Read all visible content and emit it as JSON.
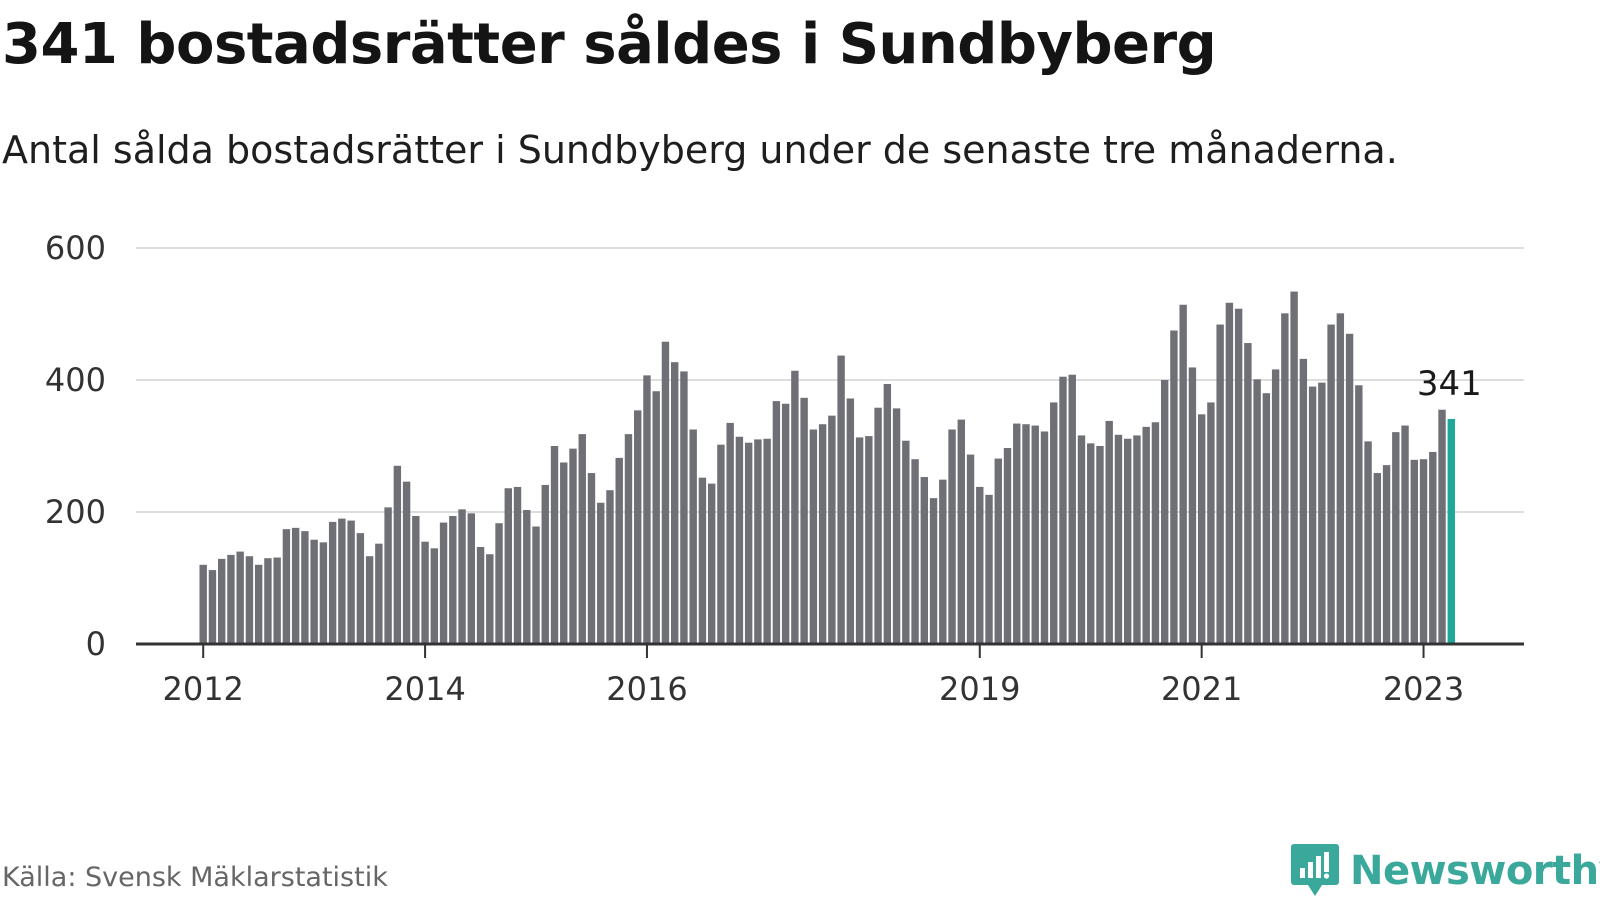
{
  "header": {
    "title": "341 bostadsrätter såldes i Sundbyberg",
    "subtitle": "Antal sålda bostadsrätter i Sundbyberg under de senaste tre månaderna."
  },
  "footer": {
    "source": "Källa: Svensk Mäklarstatistik",
    "brand": "Newsworthy"
  },
  "colors": {
    "bar": "#6f6f76",
    "highlight": "#1ea89c",
    "grid": "#dddddd",
    "axis": "#333333",
    "brand": "#3ba89c"
  },
  "chart_data": {
    "type": "bar",
    "title": "341 bostadsrätter såldes i Sundbyberg",
    "subtitle": "Antal sålda bostadsrätter i Sundbyberg under de senaste tre månaderna.",
    "xlabel": "",
    "ylabel": "",
    "ylim": [
      0,
      600
    ],
    "yticks": [
      0,
      200,
      400,
      600
    ],
    "grid": true,
    "x_tick_labels": [
      {
        "label": "2012",
        "bar_index": 0
      },
      {
        "label": "2014",
        "bar_index": 24
      },
      {
        "label": "2016",
        "bar_index": 48
      },
      {
        "label": "2019",
        "bar_index": 84
      },
      {
        "label": "2021",
        "bar_index": 108
      },
      {
        "label": "2023",
        "bar_index": 132
      }
    ],
    "highlight_index": 135,
    "highlight_label": "341",
    "values": [
      120,
      112,
      129,
      135,
      140,
      133,
      120,
      130,
      131,
      174,
      176,
      171,
      158,
      154,
      185,
      190,
      187,
      168,
      133,
      152,
      207,
      270,
      246,
      194,
      155,
      145,
      184,
      194,
      204,
      198,
      147,
      136,
      183,
      236,
      238,
      203,
      178,
      241,
      300,
      275,
      296,
      318,
      259,
      214,
      233,
      282,
      318,
      354,
      407,
      383,
      458,
      427,
      413,
      325,
      252,
      243,
      302,
      335,
      314,
      305,
      310,
      311,
      368,
      364,
      414,
      373,
      325,
      333,
      346,
      437,
      372,
      313,
      315,
      358,
      394,
      357,
      308,
      280,
      253,
      221,
      249,
      325,
      340,
      287,
      238,
      226,
      281,
      297,
      334,
      333,
      331,
      322,
      366,
      405,
      408,
      316,
      304,
      300,
      338,
      317,
      311,
      316,
      329,
      336,
      400,
      475,
      514,
      419,
      348,
      366,
      484,
      517,
      508,
      456,
      401,
      380,
      416,
      501,
      534,
      432,
      390,
      396,
      484,
      501,
      470,
      392,
      307,
      259,
      271,
      321,
      331,
      279,
      280,
      291,
      355,
      341
    ]
  }
}
